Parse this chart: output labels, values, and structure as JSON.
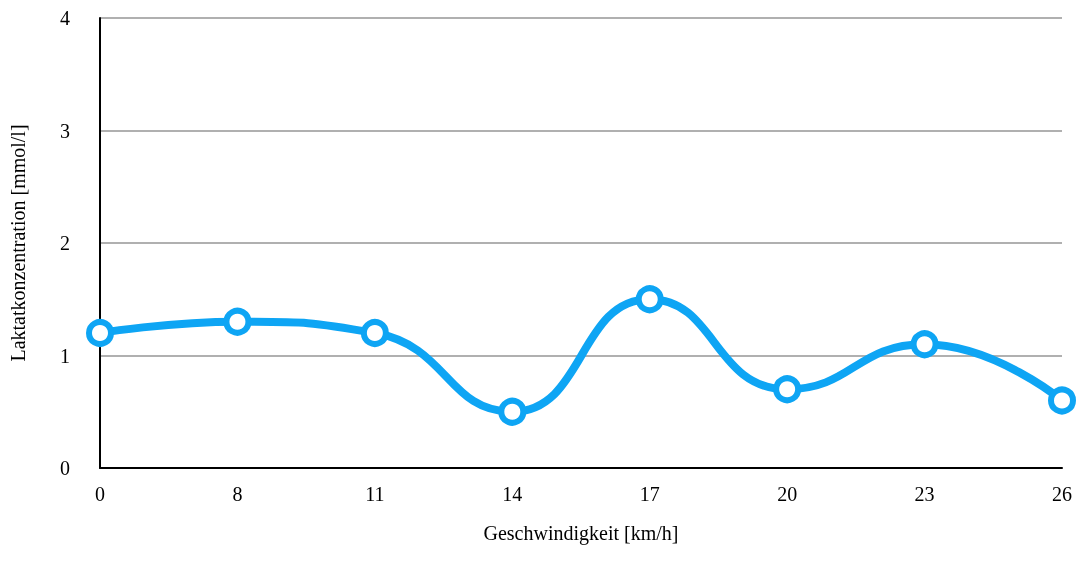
{
  "chart_data": {
    "type": "line",
    "xlabel": "Geschwindigkeit [km/h]",
    "ylabel": "Laktatkonzentration [mmol/l]",
    "categories": [
      "0",
      "8",
      "11",
      "14",
      "17",
      "20",
      "23",
      "26"
    ],
    "series": [
      {
        "color": "#0ea5f4",
        "values": [
          1.2,
          1.3,
          1.2,
          0.5,
          1.5,
          0.7,
          1.1,
          0.6
        ]
      }
    ],
    "ylim": [
      0,
      4
    ],
    "yticks": [
      0,
      1,
      2,
      3,
      4
    ],
    "grid": "y",
    "marker": "circle",
    "line_style": "solid"
  }
}
